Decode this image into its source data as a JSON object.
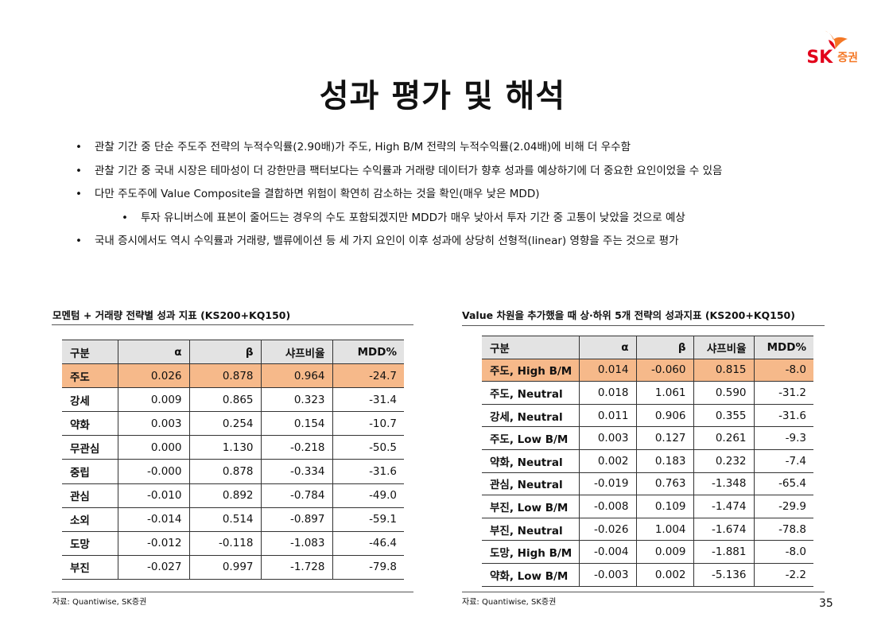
{
  "logo": {
    "brand": "SK",
    "sub": "증권"
  },
  "header": {
    "title": "성과 평가 및 해석"
  },
  "bullets": [
    {
      "level": 1,
      "text": "관찰 기간 중 단순 주도주 전략의 누적수익률(2.90배)가 주도, High B/M 전략의 누적수익률(2.04배)에 비해 더 우수함"
    },
    {
      "level": 1,
      "text": "관찰 기간 중 국내 시장은 테마성이 더 강한만큼 팩터보다는 수익률과 거래량 데이터가 향후 성과를 예상하기에 더 중요한 요인이었을 수 있음"
    },
    {
      "level": 1,
      "text": "다만 주도주에 Value Composite을 결합하면 위험이 확연히 감소하는 것을 확인(매우 낮은 MDD)"
    },
    {
      "level": 2,
      "text": "투자 유니버스에 표본이 줄어드는 경우의 수도 포함되겠지만 MDD가 매우 낮아서 투자 기간 중 고통이 낮았을 것으로 예상"
    },
    {
      "level": 1,
      "text": "국내 증시에서도 역시 수익률과 거래량, 밸류에이션 등 세 가지 요인이 이후 성과에 상당히 선형적(linear) 영향을 주는 것으로 평가"
    }
  ],
  "left_table": {
    "caption": "모멘텀 + 거래량 전략별 성과 지표 (KS200+KQ150)",
    "columns": [
      "구분",
      "α",
      "β",
      "샤프비율",
      "MDD%"
    ],
    "rows": [
      [
        "주도",
        "0.026",
        "0.878",
        "0.964",
        "-24.7"
      ],
      [
        "강세",
        "0.009",
        "0.865",
        "0.323",
        "-31.4"
      ],
      [
        "약화",
        "0.003",
        "0.254",
        "0.154",
        "-10.7"
      ],
      [
        "무관심",
        "0.000",
        "1.130",
        "-0.218",
        "-50.5"
      ],
      [
        "중립",
        "-0.000",
        "0.878",
        "-0.334",
        "-31.6"
      ],
      [
        "관심",
        "-0.010",
        "0.892",
        "-0.784",
        "-49.0"
      ],
      [
        "소외",
        "-0.014",
        "0.514",
        "-0.897",
        "-59.1"
      ],
      [
        "도망",
        "-0.012",
        "-0.118",
        "-1.083",
        "-46.4"
      ],
      [
        "부진",
        "-0.027",
        "0.997",
        "-1.728",
        "-79.8"
      ]
    ],
    "source": "자료: Quantiwise, SK증권"
  },
  "right_table": {
    "caption": "Value 차원을 추가했을 때 상·하위 5개 전략의 성과지표 (KS200+KQ150)",
    "columns": [
      "구분",
      "α",
      "β",
      "샤프비율",
      "MDD%"
    ],
    "rows": [
      [
        "주도, High B/M",
        "0.014",
        "-0.060",
        "0.815",
        "-8.0"
      ],
      [
        "주도, Neutral",
        "0.018",
        "1.061",
        "0.590",
        "-31.2"
      ],
      [
        "강세, Neutral",
        "0.011",
        "0.906",
        "0.355",
        "-31.6"
      ],
      [
        "주도, Low B/M",
        "0.003",
        "0.127",
        "0.261",
        "-9.3"
      ],
      [
        "약화, Neutral",
        "0.002",
        "0.183",
        "0.232",
        "-7.4"
      ],
      [
        "관심, Neutral",
        "-0.019",
        "0.763",
        "-1.348",
        "-65.4"
      ],
      [
        "부진, Low B/M",
        "-0.008",
        "0.109",
        "-1.474",
        "-29.9"
      ],
      [
        "부진, Neutral",
        "-0.026",
        "1.004",
        "-1.674",
        "-78.8"
      ],
      [
        "도망, High B/M",
        "-0.004",
        "0.009",
        "-1.881",
        "-8.0"
      ],
      [
        "약화, Low B/M",
        "-0.003",
        "0.002",
        "-5.136",
        "-2.2"
      ]
    ],
    "source": "자료: Quantiwise, SK증권"
  },
  "page_number": "35"
}
